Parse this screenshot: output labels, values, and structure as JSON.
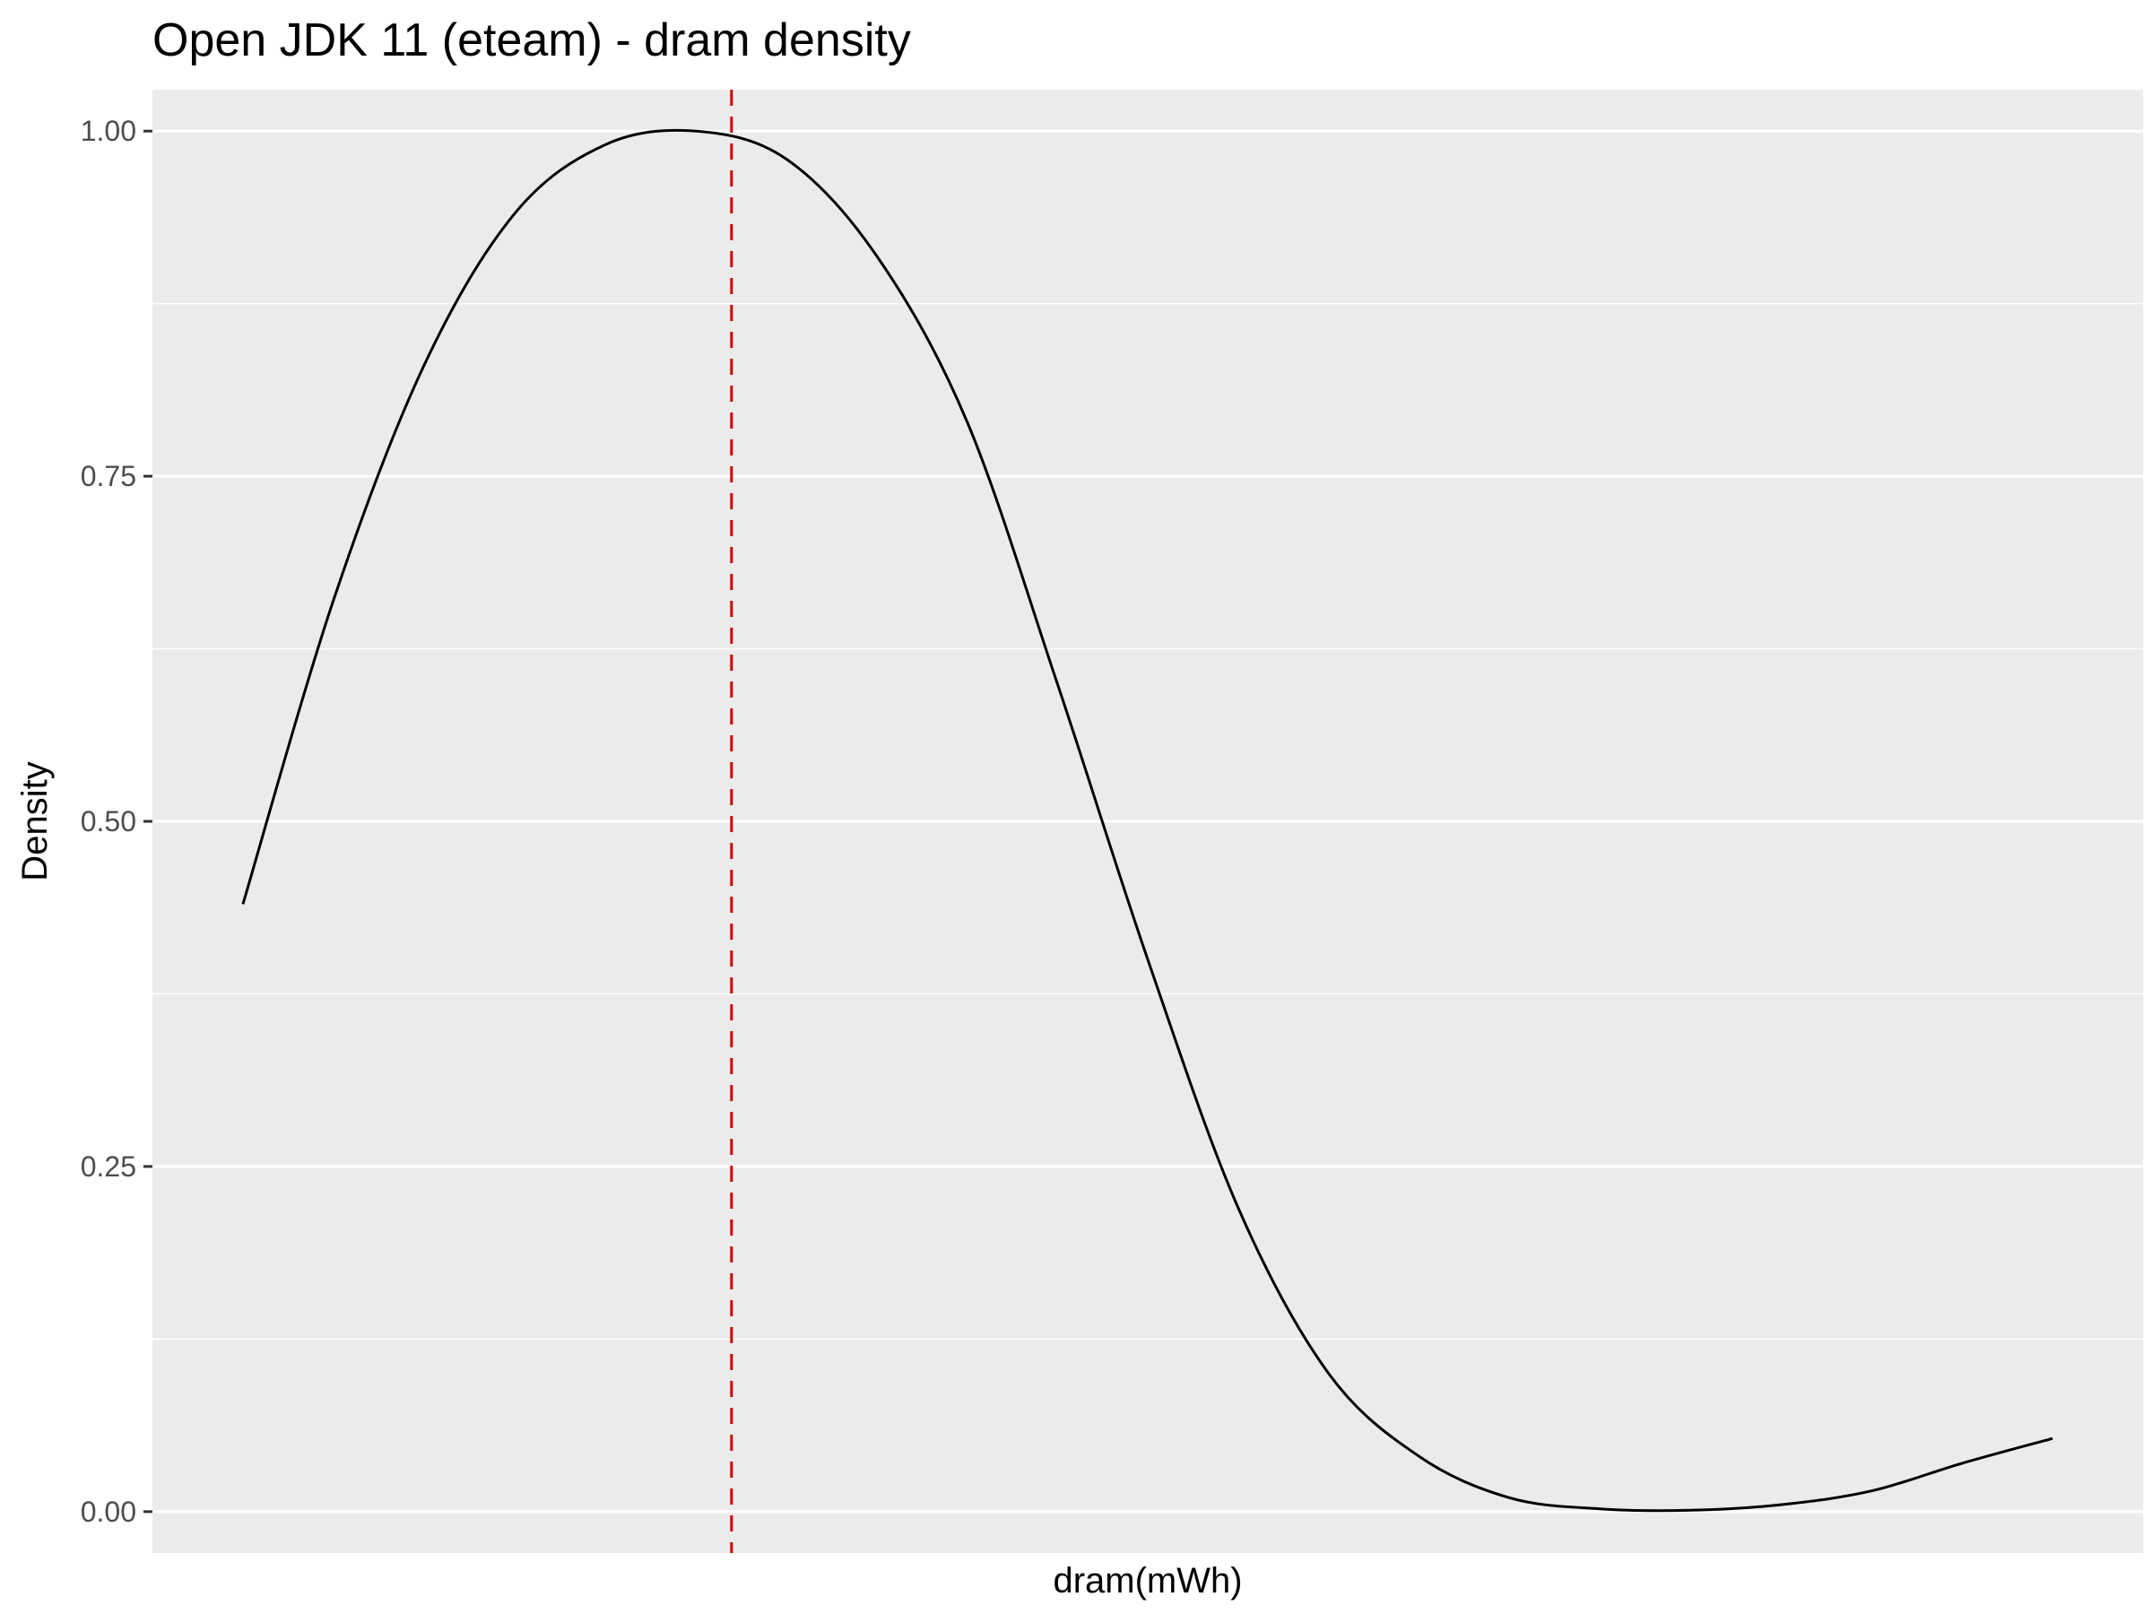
{
  "chart_data": {
    "type": "line",
    "title": "Open JDK 11 (eteam) - dram density",
    "xlabel": "dram(mWh)",
    "ylabel": "Density",
    "ylim": [
      -0.03,
      1.03
    ],
    "xlim": [
      -0.05,
      1.05
    ],
    "x_ticks_shown": false,
    "y_ticks": [
      0.0,
      0.25,
      0.5,
      0.75,
      1.0
    ],
    "y_tick_labels": [
      "0.00",
      "0.25",
      "0.50",
      "0.75",
      "1.00"
    ],
    "grid": true,
    "background": "#ebebeb",
    "line_color": "#000000",
    "vline_color": "#cc0000",
    "series": [
      {
        "x": [
          0.0,
          0.05,
          0.1,
          0.15,
          0.2,
          0.25,
          0.3,
          0.35,
          0.4,
          0.45,
          0.5,
          0.55,
          0.6,
          0.65,
          0.7,
          0.75,
          0.8,
          0.85,
          0.9,
          0.95,
          1.0
        ],
        "y": [
          0.44,
          0.66,
          0.83,
          0.94,
          0.99,
          1.0,
          0.98,
          0.91,
          0.79,
          0.6,
          0.4,
          0.22,
          0.1,
          0.04,
          0.01,
          0.002,
          0.001,
          0.005,
          0.015,
          0.035,
          0.053
        ]
      }
    ],
    "vline": {
      "x": 0.27,
      "style": "dashed"
    }
  }
}
